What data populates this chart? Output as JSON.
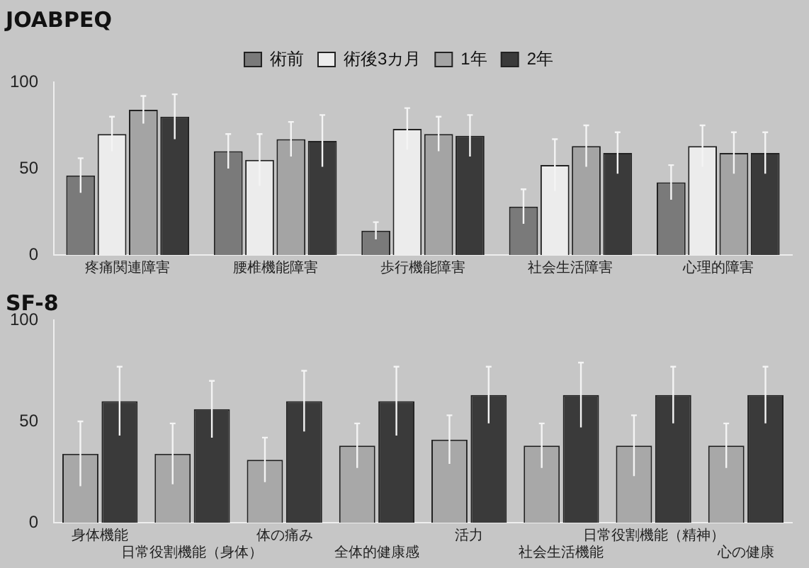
{
  "chart_data": [
    {
      "type": "bar",
      "title": "JOABPEQ",
      "categories": [
        "疼痛関連障害",
        "腰椎機能障害",
        "歩行機能障害",
        "社会生活障害",
        "心理的障害"
      ],
      "series": [
        {
          "name": "術前",
          "color": "#7a7a7a",
          "values": [
            46,
            60,
            14,
            28,
            42
          ],
          "errors": [
            10,
            10,
            5,
            10,
            10
          ]
        },
        {
          "name": "術後3カ月",
          "color": "#ececec",
          "values": [
            70,
            55,
            73,
            52,
            63
          ],
          "errors": [
            10,
            15,
            12,
            15,
            12
          ]
        },
        {
          "name": "1年",
          "color": "#a4a4a4",
          "values": [
            84,
            67,
            70,
            63,
            59
          ],
          "errors": [
            8,
            10,
            10,
            12,
            12
          ]
        },
        {
          "name": "2年",
          "color": "#3a3a3a",
          "values": [
            80,
            66,
            69,
            59,
            59
          ],
          "errors": [
            13,
            15,
            12,
            12,
            12
          ]
        }
      ],
      "ylim": [
        0,
        100
      ],
      "yticks": [
        0,
        50,
        100
      ],
      "grid": false,
      "legend": "top"
    },
    {
      "type": "bar",
      "title": "SF-8",
      "categories": [
        "身体機能",
        "日常役割機能（身体）",
        "体の痛み",
        "全体的健康感",
        "活力",
        "社会生活機能",
        "日常役割機能（精神）",
        "心の健康"
      ],
      "series": [
        {
          "color": "#a8a8a8",
          "values": [
            34,
            34,
            31,
            38,
            41,
            38,
            38,
            38
          ],
          "errors": [
            16,
            15,
            11,
            11,
            12,
            11,
            15,
            11
          ]
        },
        {
          "color": "#3a3a3a",
          "values": [
            60,
            56,
            60,
            60,
            63,
            63,
            63,
            63
          ],
          "errors": [
            17,
            14,
            15,
            17,
            14,
            16,
            14,
            14
          ]
        }
      ],
      "ylim": [
        0,
        100
      ],
      "yticks": [
        0,
        50,
        100
      ],
      "grid": false,
      "legend": false
    }
  ]
}
